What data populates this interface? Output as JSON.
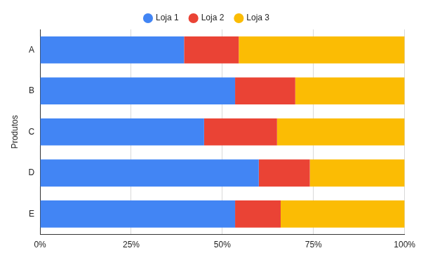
{
  "chart_data": {
    "type": "bar",
    "orientation": "horizontal",
    "stacked": true,
    "y_label": "Produtos",
    "categories": [
      "A",
      "B",
      "C",
      "D",
      "E"
    ],
    "series": [
      {
        "name": "Loja 1",
        "color": "#4285f4",
        "values": [
          39.5,
          53.5,
          45,
          60,
          53.5
        ]
      },
      {
        "name": "Loja 2",
        "color": "#ea4335",
        "values": [
          15,
          16.5,
          20,
          14,
          12.5
        ]
      },
      {
        "name": "Loja 3",
        "color": "#fbbc04",
        "values": [
          45.5,
          30,
          35,
          26,
          34
        ]
      }
    ],
    "xlim": [
      0,
      100
    ],
    "xticks": [
      {
        "value": 0,
        "label": "0%"
      },
      {
        "value": 25,
        "label": "25%"
      },
      {
        "value": 50,
        "label": "50%"
      },
      {
        "value": 75,
        "label": "75%"
      },
      {
        "value": 100,
        "label": "100%"
      }
    ],
    "grid": true,
    "legend": "top"
  }
}
